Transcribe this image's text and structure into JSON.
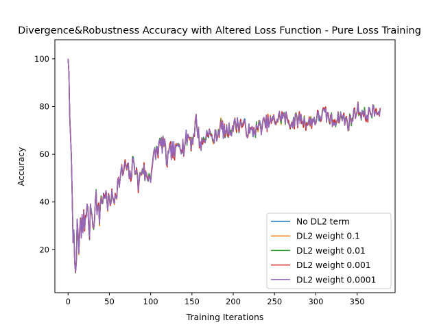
{
  "chart_data": {
    "type": "line",
    "title": "Divergence&Robustness Accuracy with Altered Loss Function - Pure Loss Training",
    "xlabel": "Training Iterations",
    "ylabel": "Accuracy",
    "xlim": [
      -16,
      396
    ],
    "ylim": [
      2,
      108
    ],
    "xticks": [
      0,
      50,
      100,
      150,
      200,
      250,
      300,
      350
    ],
    "yticks": [
      20,
      40,
      60,
      80,
      100
    ],
    "grid": false,
    "legend_position": "lower-right",
    "anchors_x": [
      0,
      1,
      2,
      3,
      4,
      5,
      6,
      7,
      8,
      9,
      10,
      11,
      12,
      13,
      14,
      15,
      16,
      17,
      18,
      19,
      20,
      22,
      24,
      26,
      28,
      30,
      32,
      34,
      36,
      38,
      40,
      42,
      45,
      48,
      50,
      55,
      60,
      65,
      70,
      75,
      80,
      85,
      90,
      95,
      100,
      105,
      110,
      115,
      120,
      125,
      130,
      135,
      140,
      145,
      150,
      155,
      160,
      165,
      170,
      175,
      180,
      185,
      190,
      195,
      200,
      210,
      220,
      230,
      240,
      250,
      260,
      270,
      280,
      290,
      300,
      310,
      320,
      330,
      340,
      350,
      360,
      370,
      380
    ],
    "base_y": [
      100,
      93,
      75,
      64,
      63,
      38,
      25,
      34,
      20,
      7,
      10,
      32,
      28,
      18,
      26,
      30,
      22,
      35,
      28,
      33,
      30,
      38,
      34,
      28,
      40,
      30,
      36,
      42,
      37,
      33,
      43,
      40,
      45,
      37,
      42,
      41,
      47,
      52,
      55,
      50,
      58,
      47,
      55,
      50,
      52,
      60,
      63,
      65,
      57,
      62,
      60,
      66,
      63,
      68,
      65,
      74,
      64,
      66,
      70,
      66,
      68,
      72,
      69,
      70,
      72,
      73,
      69,
      71,
      73,
      74,
      76,
      73,
      75,
      73,
      75,
      77,
      74,
      76,
      73,
      79,
      76,
      78,
      76
    ],
    "noise_amp": [
      0,
      2,
      3,
      4,
      4,
      6,
      6,
      6,
      6,
      4,
      5,
      6,
      6,
      6,
      6,
      6,
      6,
      6,
      6,
      5,
      5,
      5,
      5,
      5,
      5,
      5,
      5,
      5,
      5,
      5,
      4,
      4,
      4,
      4,
      4,
      4,
      4,
      4,
      4,
      4,
      4,
      4,
      4,
      4,
      4,
      4,
      4,
      4,
      4,
      4,
      4,
      4,
      4,
      4,
      4,
      4,
      3,
      3,
      3,
      3,
      3,
      3,
      3,
      3,
      3,
      3,
      3,
      3,
      3,
      3,
      3,
      3,
      3,
      3,
      3,
      3,
      3,
      3,
      3,
      3,
      3,
      3,
      2
    ],
    "series": [
      {
        "name": "No DL2 term",
        "color": "#1f77b4",
        "seed": 11
      },
      {
        "name": "DL2 weight 0.1",
        "color": "#ff7f0e",
        "seed": 23
      },
      {
        "name": "DL2 weight 0.01",
        "color": "#2ca02c",
        "seed": 37
      },
      {
        "name": "DL2 weight 0.001",
        "color": "#d62728",
        "seed": 41
      },
      {
        "name": "DL2 weight 0.0001",
        "color": "#9467bd",
        "seed": 53
      }
    ]
  }
}
